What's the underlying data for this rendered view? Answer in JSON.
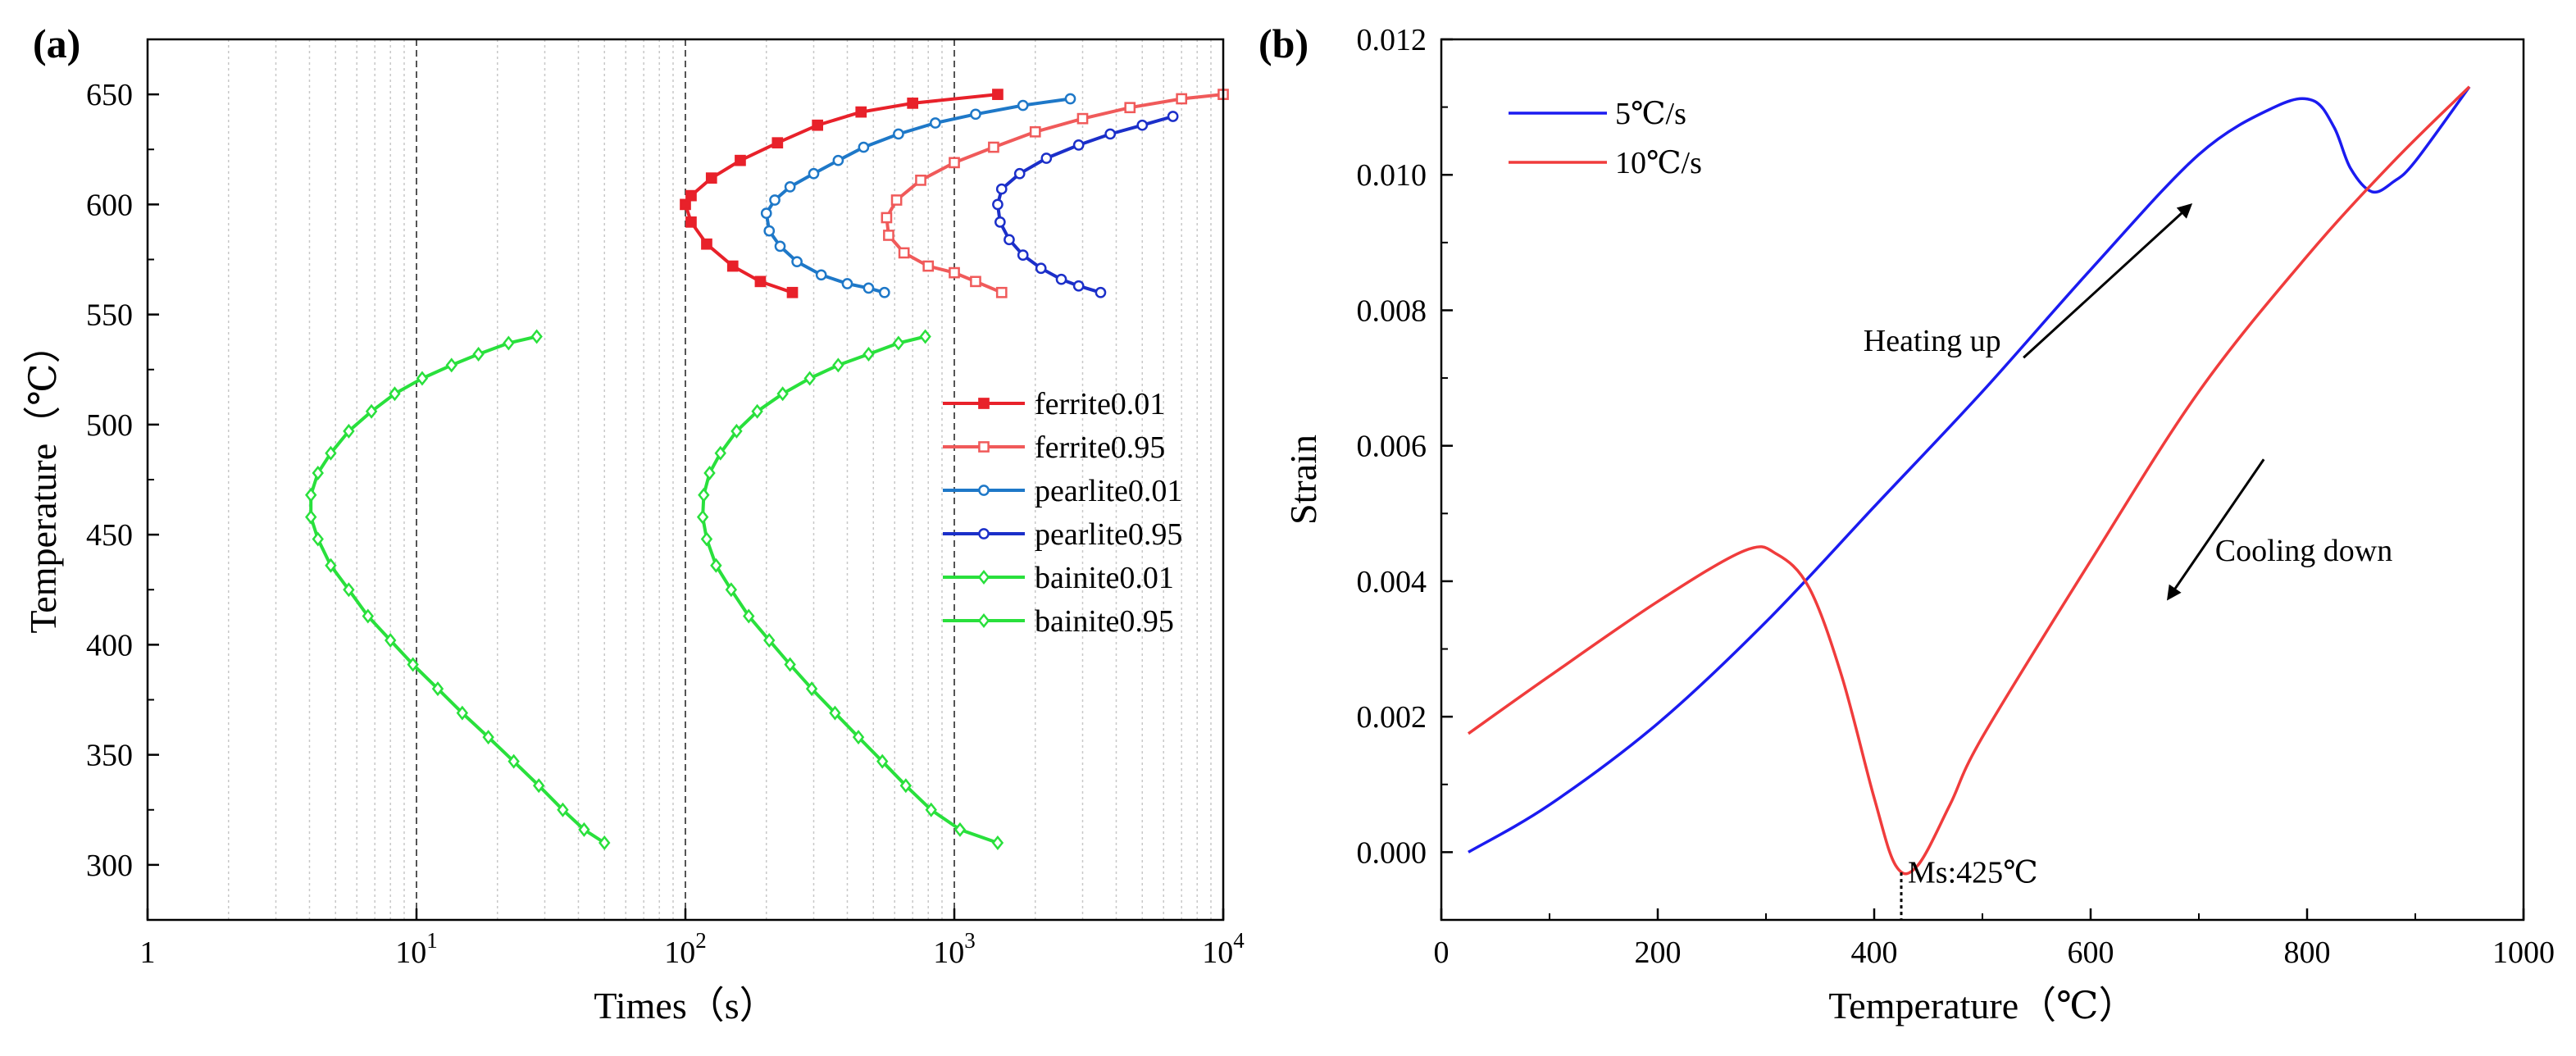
{
  "chart_data": [
    {
      "panel_label": "(a)",
      "type": "line",
      "xscale": "log",
      "xlabel": "Times（s）",
      "ylabel": "Temperature（℃）",
      "xlim": [
        1,
        10000
      ],
      "ylim": [
        275,
        675
      ],
      "yticks": [
        300,
        350,
        400,
        450,
        500,
        550,
        600,
        650
      ],
      "xticks": [
        {
          "value": 1,
          "base": "1",
          "exp": ""
        },
        {
          "value": 10,
          "base": "10",
          "exp": "1"
        },
        {
          "value": 100,
          "base": "10",
          "exp": "2"
        },
        {
          "value": 1000,
          "base": "10",
          "exp": "3"
        },
        {
          "value": 10000,
          "base": "10",
          "exp": "4"
        }
      ],
      "grid": "vertical minor dotted, decade lines dashed",
      "legend_position": "right",
      "series": [
        {
          "name": "ferrite0.01",
          "color": "#e8212a",
          "marker": "square-filled",
          "points": [
            [
              1450,
              650
            ],
            [
              700,
              646
            ],
            [
              450,
              642
            ],
            [
              310,
              636
            ],
            [
              220,
              628
            ],
            [
              160,
              620
            ],
            [
              125,
              612
            ],
            [
              105,
              604
            ],
            [
              100,
              600
            ],
            [
              105,
              592
            ],
            [
              120,
              582
            ],
            [
              150,
              572
            ],
            [
              190,
              565
            ],
            [
              250,
              560
            ]
          ]
        },
        {
          "name": "ferrite0.95",
          "color": "#f05a5a",
          "marker": "square-open",
          "points": [
            [
              10000,
              650
            ],
            [
              7000,
              648
            ],
            [
              4500,
              644
            ],
            [
              3000,
              639
            ],
            [
              2000,
              633
            ],
            [
              1400,
              626
            ],
            [
              1000,
              619
            ],
            [
              750,
              611
            ],
            [
              610,
              602
            ],
            [
              560,
              594
            ],
            [
              570,
              586
            ],
            [
              650,
              578
            ],
            [
              800,
              572
            ],
            [
              1000,
              569
            ],
            [
              1200,
              565
            ],
            [
              1500,
              560
            ]
          ]
        },
        {
          "name": "pearlite0.01",
          "color": "#1e78c8",
          "marker": "circle-open",
          "points": [
            [
              2700,
              648
            ],
            [
              1800,
              645
            ],
            [
              1200,
              641
            ],
            [
              850,
              637
            ],
            [
              620,
              632
            ],
            [
              460,
              626
            ],
            [
              370,
              620
            ],
            [
              300,
              614
            ],
            [
              245,
              608
            ],
            [
              215,
              602
            ],
            [
              200,
              596
            ],
            [
              205,
              588
            ],
            [
              225,
              581
            ],
            [
              260,
              574
            ],
            [
              320,
              568
            ],
            [
              400,
              564
            ],
            [
              480,
              562
            ],
            [
              550,
              560
            ]
          ]
        },
        {
          "name": "pearlite0.95",
          "color": "#1b2fc9",
          "marker": "circle-open",
          "points": [
            [
              6500,
              640
            ],
            [
              5000,
              636
            ],
            [
              3800,
              632
            ],
            [
              2900,
              627
            ],
            [
              2200,
              621
            ],
            [
              1750,
              614
            ],
            [
              1500,
              607
            ],
            [
              1450,
              600
            ],
            [
              1480,
              592
            ],
            [
              1600,
              584
            ],
            [
              1800,
              577
            ],
            [
              2100,
              571
            ],
            [
              2500,
              566
            ],
            [
              2900,
              563
            ],
            [
              3500,
              560
            ]
          ]
        },
        {
          "name": "bainite0.01",
          "color": "#29e03c",
          "marker": "diamond-open",
          "points": [
            [
              28,
              540
            ],
            [
              22,
              537
            ],
            [
              17,
              532
            ],
            [
              13.5,
              527
            ],
            [
              10.5,
              521
            ],
            [
              8.3,
              514
            ],
            [
              6.8,
              506
            ],
            [
              5.6,
              497
            ],
            [
              4.8,
              487
            ],
            [
              4.3,
              478
            ],
            [
              4.05,
              468
            ],
            [
              4.05,
              458
            ],
            [
              4.3,
              448
            ],
            [
              4.8,
              436
            ],
            [
              5.6,
              425
            ],
            [
              6.6,
              413
            ],
            [
              8,
              402
            ],
            [
              9.7,
              391
            ],
            [
              12,
              380
            ],
            [
              14.8,
              369
            ],
            [
              18.5,
              358
            ],
            [
              23,
              347
            ],
            [
              28.5,
              336
            ],
            [
              35,
              325
            ],
            [
              42,
              316
            ],
            [
              50,
              310
            ]
          ]
        },
        {
          "name": "bainite0.95",
          "color": "#29e03c",
          "marker": "diamond-open",
          "points": [
            [
              780,
              540
            ],
            [
              620,
              537
            ],
            [
              480,
              532
            ],
            [
              370,
              527
            ],
            [
              290,
              521
            ],
            [
              230,
              514
            ],
            [
              185,
              506
            ],
            [
              155,
              497
            ],
            [
              135,
              487
            ],
            [
              123,
              478
            ],
            [
              117,
              468
            ],
            [
              116,
              458
            ],
            [
              120,
              448
            ],
            [
              130,
              436
            ],
            [
              148,
              425
            ],
            [
              172,
              413
            ],
            [
              205,
              402
            ],
            [
              245,
              391
            ],
            [
              295,
              380
            ],
            [
              360,
              369
            ],
            [
              440,
              358
            ],
            [
              540,
              347
            ],
            [
              660,
              336
            ],
            [
              820,
              325
            ],
            [
              1050,
              316
            ],
            [
              1450,
              310
            ]
          ]
        }
      ]
    },
    {
      "panel_label": "(b)",
      "type": "line",
      "xlabel": "Temperature（℃）",
      "ylabel": "Strain",
      "xlim": [
        0,
        1000
      ],
      "ylim": [
        -0.001,
        0.012
      ],
      "xticks": [
        "0",
        "200",
        "400",
        "600",
        "800",
        "1000"
      ],
      "yticks": [
        "0.000",
        "0.002",
        "0.004",
        "0.006",
        "0.008",
        "0.010",
        "0.012"
      ],
      "legend_position": "top-left",
      "series": [
        {
          "name": "5℃/s",
          "color": "#1b1bf0",
          "points": [
            [
              25,
              0.0
            ],
            [
              100,
              0.0007
            ],
            [
              200,
              0.0019
            ],
            [
              300,
              0.0034
            ],
            [
              400,
              0.0051
            ],
            [
              500,
              0.0068
            ],
            [
              600,
              0.0086
            ],
            [
              700,
              0.0103
            ],
            [
              770,
              0.011
            ],
            [
              805,
              0.0111
            ],
            [
              825,
              0.0107
            ],
            [
              840,
              0.0101
            ],
            [
              860,
              0.00975
            ],
            [
              880,
              0.0099
            ],
            [
              900,
              0.0102
            ],
            [
              950,
              0.0113
            ]
          ]
        },
        {
          "name": "10℃/s",
          "color": "#f03c3c",
          "points": [
            [
              25,
              0.00175
            ],
            [
              100,
              0.0026
            ],
            [
              200,
              0.0037
            ],
            [
              280,
              0.00445
            ],
            [
              310,
              0.0044
            ],
            [
              340,
              0.0039
            ],
            [
              370,
              0.0026
            ],
            [
              400,
              0.0008
            ],
            [
              420,
              -0.0002
            ],
            [
              440,
              -0.0002
            ],
            [
              470,
              0.0007
            ],
            [
              500,
              0.0017
            ],
            [
              600,
              0.0043
            ],
            [
              700,
              0.0068
            ],
            [
              800,
              0.0088
            ],
            [
              880,
              0.0102
            ],
            [
              950,
              0.0113
            ]
          ]
        }
      ],
      "annotations": [
        {
          "text": "Heating up",
          "arrow": "up-right",
          "at": [
            360,
            0.0075
          ]
        },
        {
          "text": "Cooling down",
          "arrow": "down-left",
          "at": [
            760,
            0.0044
          ]
        },
        {
          "text": "Ms:425℃",
          "at": [
            425,
            -0.0003
          ]
        }
      ]
    }
  ]
}
